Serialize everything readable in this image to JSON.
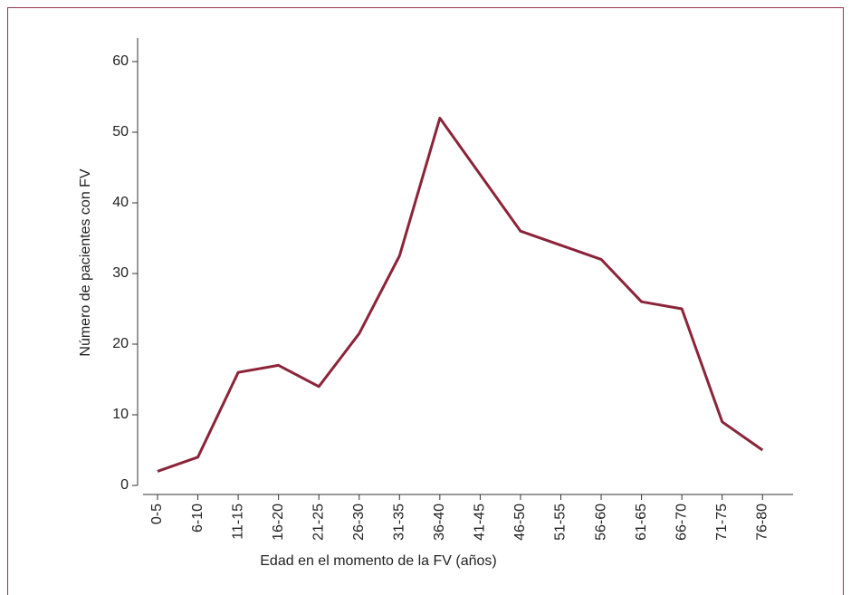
{
  "chart_data": {
    "type": "line",
    "x_label": "Edad en el momento de la FV (años)",
    "y_label": "Número de pacientes con FV",
    "categories": [
      "0-5",
      "6-10",
      "11-15",
      "16-20",
      "21-25",
      "26-30",
      "31-35",
      "36-40",
      "41-45",
      "46-50",
      "51-55",
      "56-60",
      "61-65",
      "66-70",
      "71-75",
      "76-80"
    ],
    "values": [
      2,
      4,
      16,
      17,
      14,
      21.5,
      32.5,
      52,
      44,
      36,
      34,
      32,
      26,
      25,
      9,
      5
    ],
    "color": "#8b2439",
    "ylim": [
      0,
      60
    ],
    "yticks": [
      0,
      10,
      20,
      30,
      40,
      50,
      60
    ],
    "grid": false
  }
}
